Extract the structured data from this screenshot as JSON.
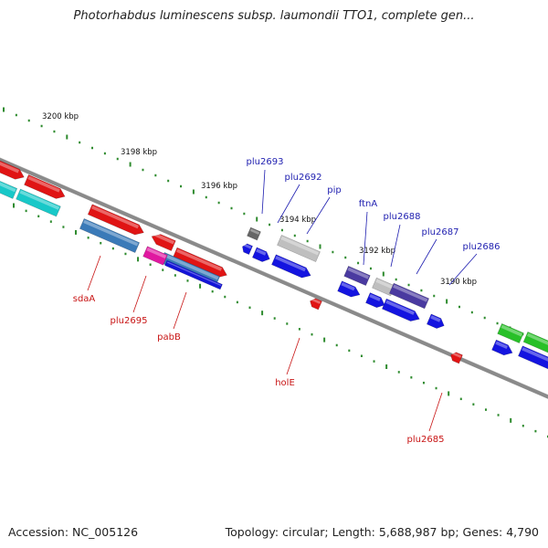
{
  "title": "Photorhabdus luminescens subsp. laumondii TTO1, complete gen...",
  "footer": {
    "accession": "Accession: NC_005126",
    "topology": "Topology: circular; Length: 5,688,987 bp; Genes: 4,790"
  },
  "colors": {
    "backbone": "#8a8a8a",
    "tick": "#2e8b2e",
    "label_top": "#1f1fb0",
    "label_bottom": "#c81414"
  },
  "scale_labels": [
    "3200 kbp",
    "3198 kbp",
    "3196 kbp",
    "3194 kbp",
    "3192 kbp",
    "3190 kbp"
  ],
  "gene_labels_top": [
    "plu2693",
    "plu2692",
    "pip",
    "ftnA",
    "plu2688",
    "plu2687",
    "plu2686"
  ],
  "gene_labels_bottom": [
    "sdaA",
    "plu2695",
    "pabB",
    "holE",
    "plu2685"
  ]
}
